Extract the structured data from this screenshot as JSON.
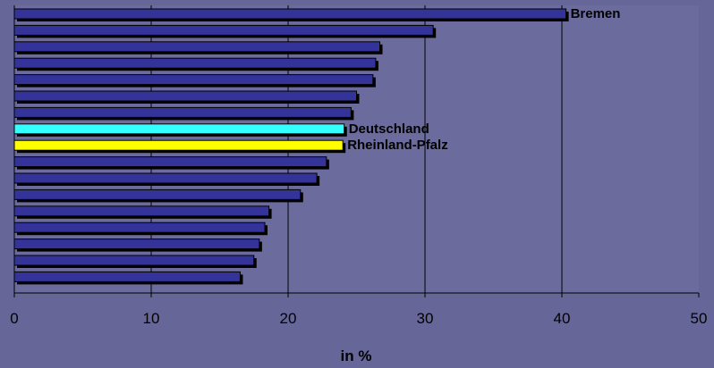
{
  "colors": {
    "background": "#666699",
    "plot_area": "#6B6B9E",
    "bar_default": "#333399",
    "bar_shadow": "#000000",
    "bar_deutschland": "#33FFFF",
    "bar_rheinland_pfalz": "#FFFF00",
    "gridline": "#000000"
  },
  "chart_data": {
    "type": "bar",
    "orientation": "horizontal",
    "xlabel": "in %",
    "ylabel": "",
    "xlim": [
      0,
      50
    ],
    "xticks": [
      0,
      10,
      20,
      30,
      40,
      50
    ],
    "grid": "vertical gridlines at x ticks",
    "legend": "none",
    "bars": [
      {
        "value": 40.3,
        "label": "Bremen",
        "color": "default"
      },
      {
        "value": 30.6,
        "label": "",
        "color": "default"
      },
      {
        "value": 26.7,
        "label": "",
        "color": "default"
      },
      {
        "value": 26.4,
        "label": "",
        "color": "default"
      },
      {
        "value": 26.2,
        "label": "",
        "color": "default"
      },
      {
        "value": 25.0,
        "label": "",
        "color": "default"
      },
      {
        "value": 24.6,
        "label": "",
        "color": "default"
      },
      {
        "value": 24.1,
        "label": "Deutschland",
        "color": "deutschland"
      },
      {
        "value": 24.0,
        "label": "Rheinland-Pfalz",
        "color": "rheinland_pfalz"
      },
      {
        "value": 22.8,
        "label": "",
        "color": "default"
      },
      {
        "value": 22.1,
        "label": "",
        "color": "default"
      },
      {
        "value": 20.9,
        "label": "",
        "color": "default"
      },
      {
        "value": 18.6,
        "label": "",
        "color": "default"
      },
      {
        "value": 18.3,
        "label": "",
        "color": "default"
      },
      {
        "value": 17.9,
        "label": "",
        "color": "default"
      },
      {
        "value": 17.5,
        "label": "",
        "color": "default"
      },
      {
        "value": 16.5,
        "label": "",
        "color": "default"
      }
    ]
  }
}
